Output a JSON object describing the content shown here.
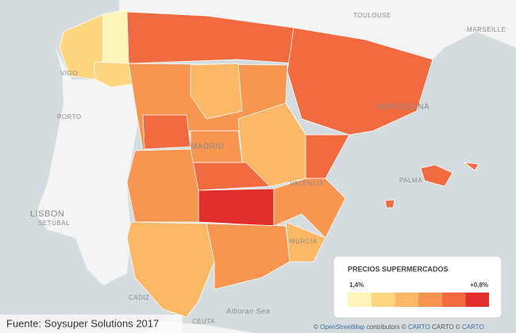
{
  "map": {
    "labels": [
      "TOULOUSE",
      "MARSEILLE",
      "VIGO",
      "PORTO",
      "LISBON",
      "SETÚBAL",
      "MADRID",
      "BARCELONA",
      "VALENCIA",
      "PALMA",
      "MURCIA",
      "CÁDIZ",
      "CEUTA",
      "Alboran Sea"
    ]
  },
  "legend": {
    "title": "PRECIOS SUPERMERCADOS",
    "min_label": "1,4%",
    "max_label": "+0,8%",
    "colors": [
      "#fff5b8",
      "#fed67f",
      "#fcb866",
      "#f89550",
      "#f26a40",
      "#e1302b"
    ]
  },
  "source": "Fuente: Soysuper Solutions 2017",
  "attribution": [
    "©",
    "OpenStreetMap",
    "contributors ©",
    "CARTO",
    "CARTO ©",
    "CARTO"
  ]
}
